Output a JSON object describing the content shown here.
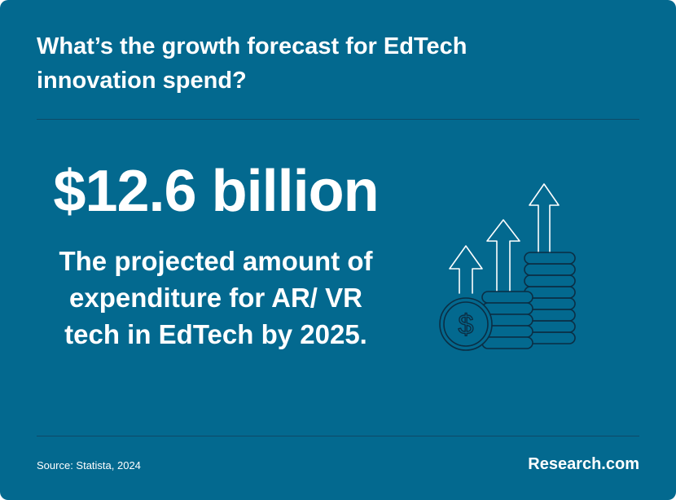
{
  "headline": "What’s the growth forecast for EdTech innovation spend?",
  "stat": {
    "value": "$12.6 billion",
    "description": "The projected amount of expenditure for AR/ VR tech in EdTech by 2025."
  },
  "footer": {
    "source": "Source: Statista, 2024",
    "brand": "Research.com"
  },
  "graphic": {
    "icon": "coin-stacks-growth-arrows-icon",
    "coin_symbol": "$"
  },
  "colors": {
    "background": "#03698f",
    "text": "#ffffff",
    "divider": "#0e4a67",
    "icon_stroke": "#0b2e44"
  }
}
